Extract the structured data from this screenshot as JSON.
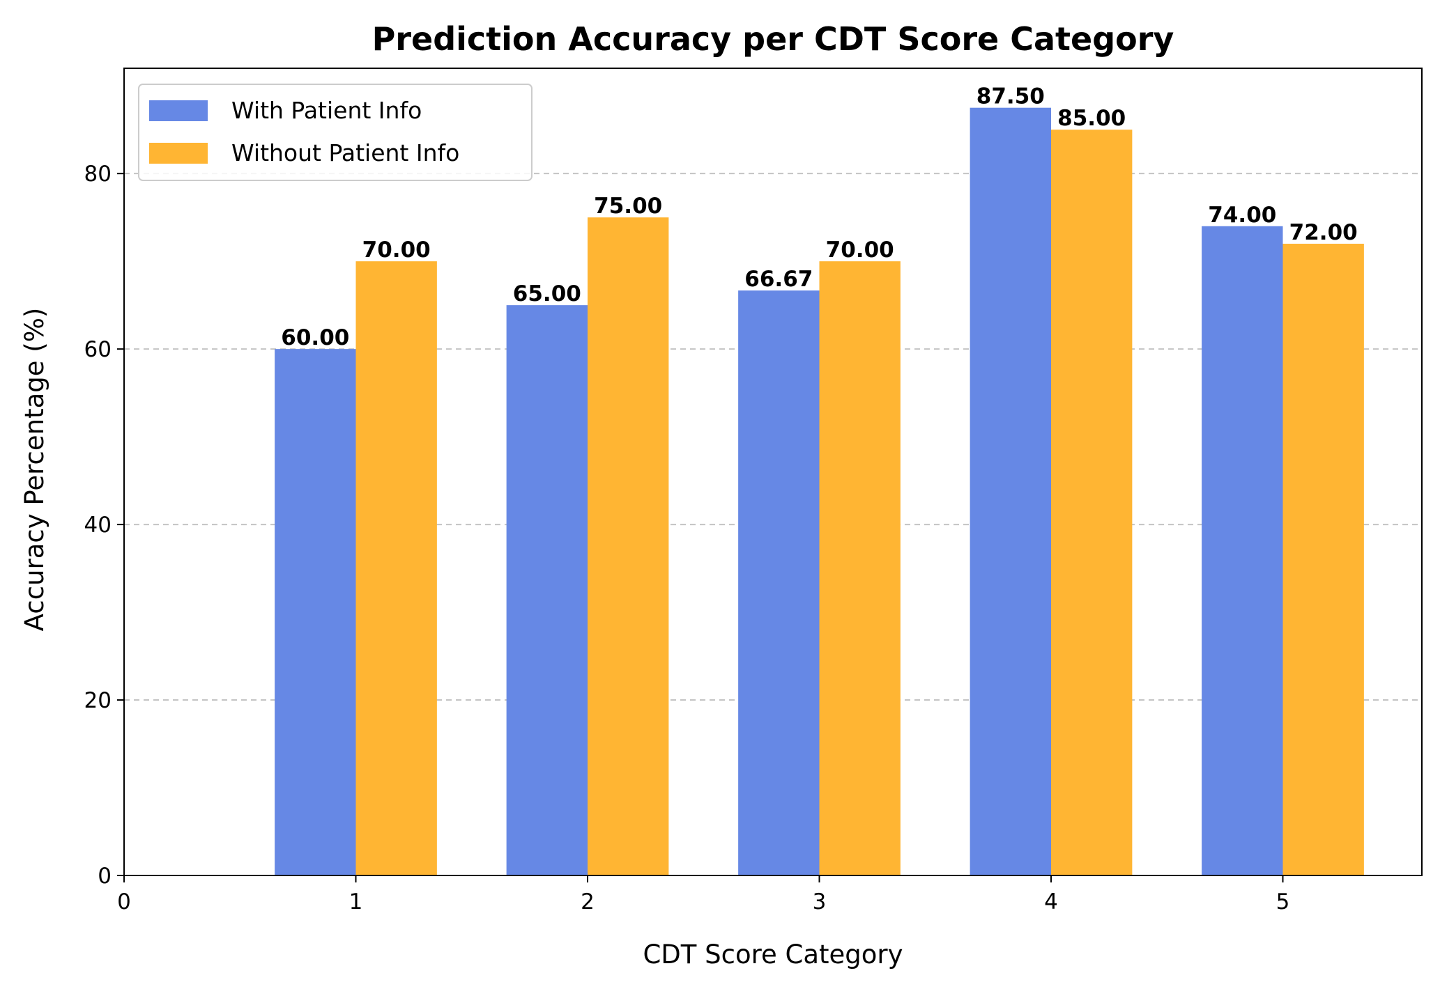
{
  "chart_data": {
    "type": "bar",
    "title": "Prediction Accuracy per CDT Score Category",
    "xlabel": "CDT Score Category",
    "ylabel": "Accuracy Percentage (%)",
    "categories": [
      1,
      2,
      3,
      4,
      5
    ],
    "xticks": [
      "0",
      "1",
      "2",
      "3",
      "4",
      "5"
    ],
    "xlim": [
      0,
      5.6
    ],
    "yticks": [
      "0",
      "20",
      "40",
      "60",
      "80"
    ],
    "ylim": [
      0,
      92
    ],
    "grid": "y-dashed",
    "legend_position": "top-left",
    "series": [
      {
        "name": "With Patient Info",
        "color": "#6688e5",
        "values": [
          60.0,
          65.0,
          66.67,
          87.5,
          74.0
        ],
        "labels": [
          "60.00",
          "65.00",
          "66.67",
          "87.50",
          "74.00"
        ]
      },
      {
        "name": "Without Patient Info",
        "color": "#ffb533",
        "values": [
          70.0,
          75.0,
          70.0,
          85.0,
          72.0
        ],
        "labels": [
          "70.00",
          "75.00",
          "70.00",
          "85.00",
          "72.00"
        ]
      }
    ]
  }
}
